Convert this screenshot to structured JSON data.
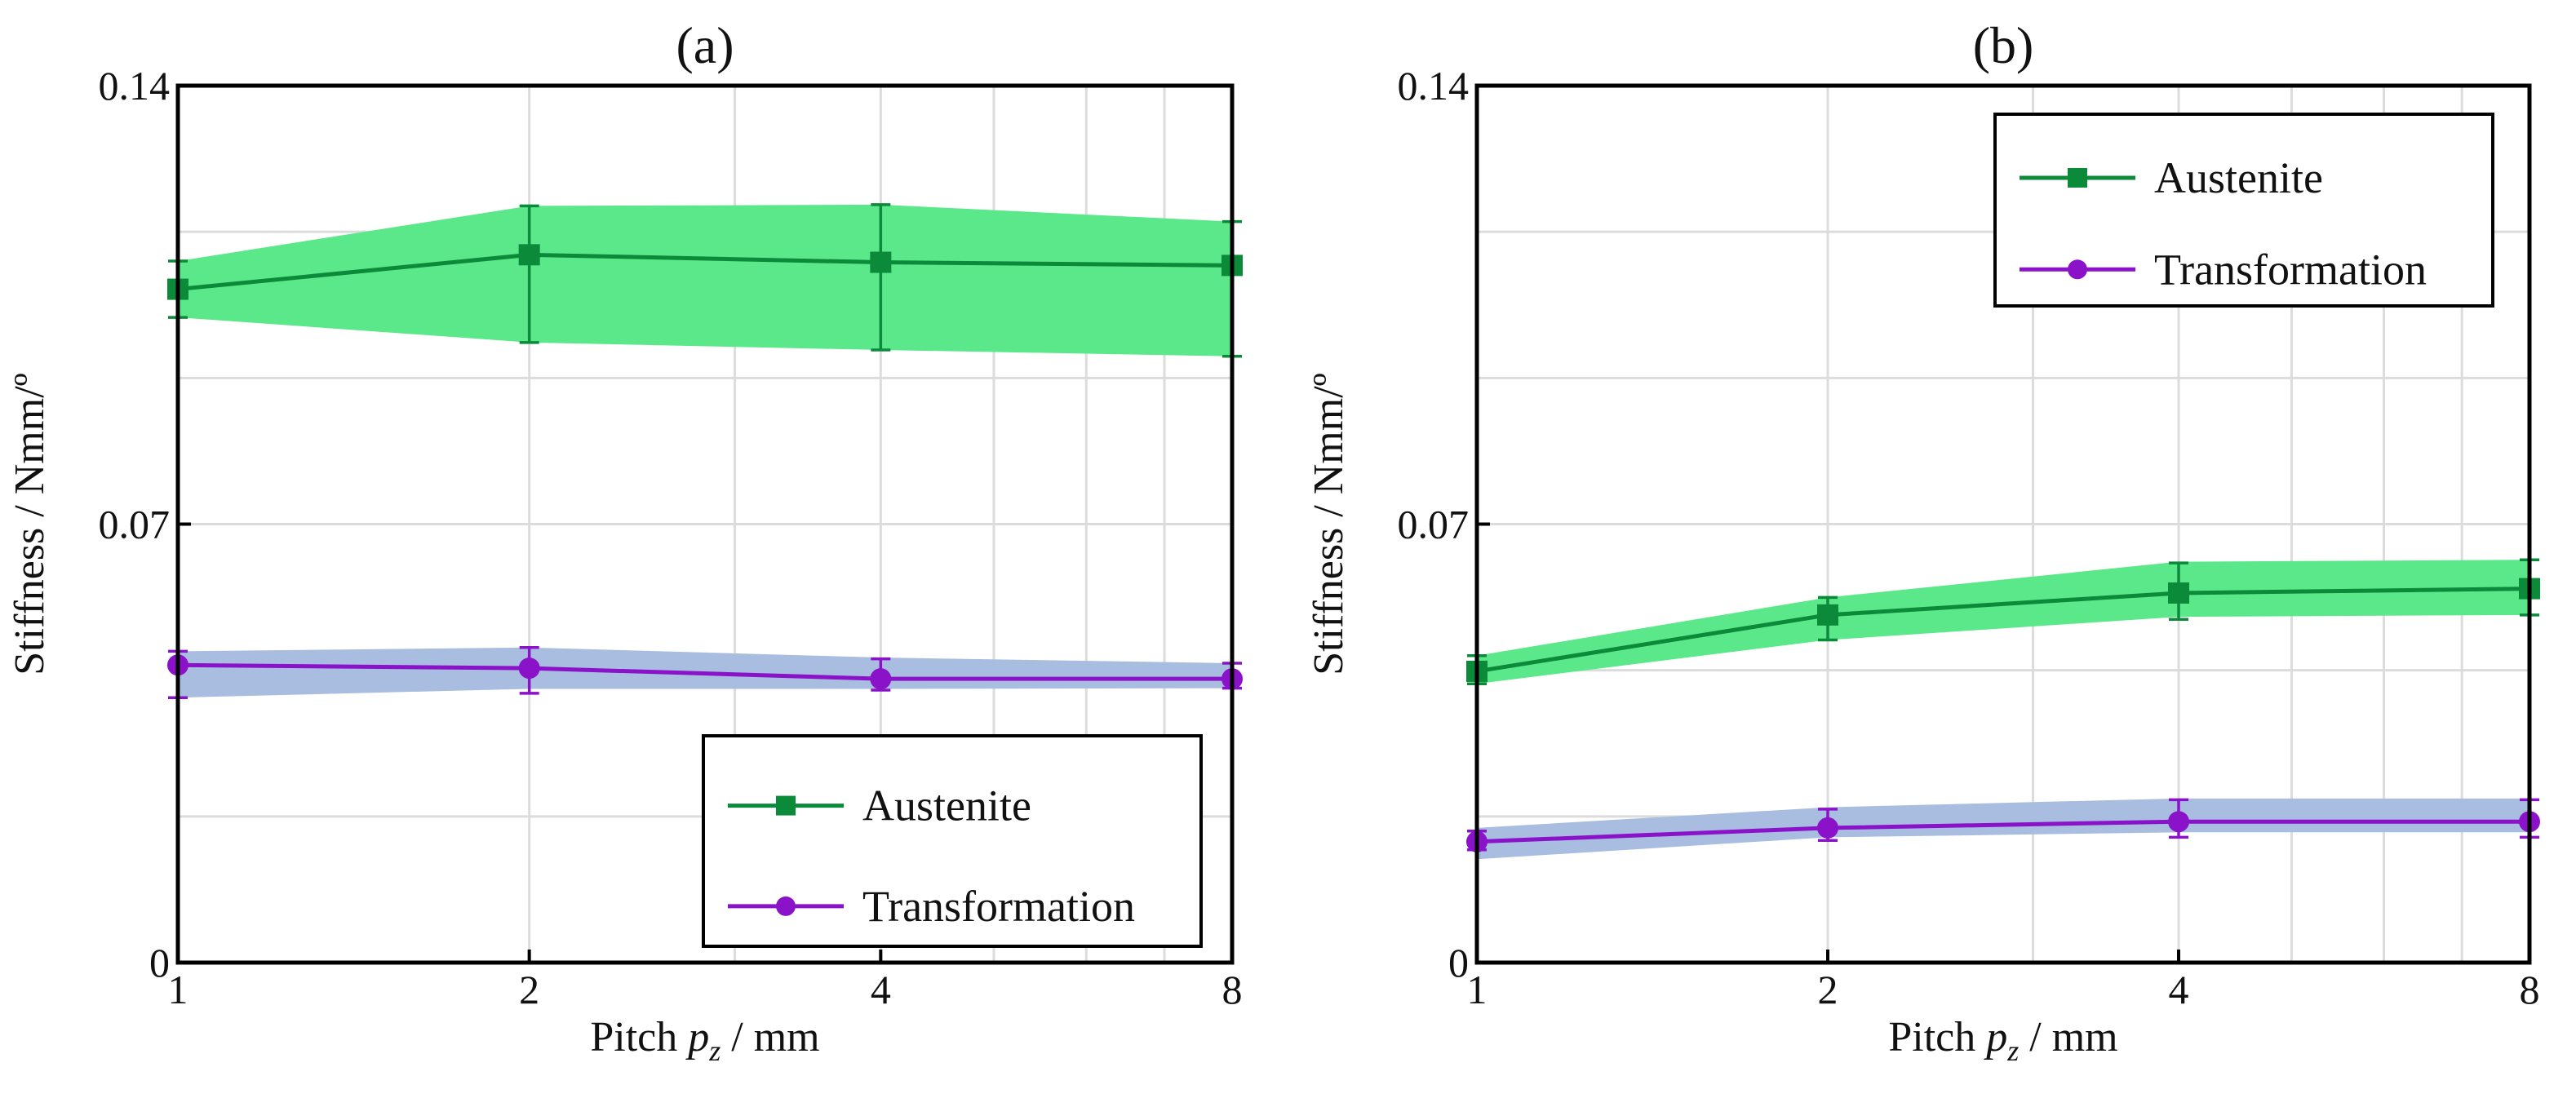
{
  "chart_data": [
    {
      "type": "line",
      "title": "(a)",
      "xlabel_parts": [
        "Pitch ",
        "p",
        "z",
        " / mm"
      ],
      "ylabel": "Stiffness / Nmm/º",
      "x_scale": "log2",
      "xlim": [
        1,
        8
      ],
      "ylim": [
        0,
        0.14
      ],
      "x_ticks": [
        1,
        2,
        4,
        8
      ],
      "x_tick_labels": [
        "1",
        "2",
        "4",
        "8"
      ],
      "y_ticks": [
        0,
        0.07,
        0.14
      ],
      "y_tick_labels": [
        "0",
        "0.07",
        "0.14"
      ],
      "grid": true,
      "legend_position": "bottom-right",
      "series": [
        {
          "name": "Austenite",
          "marker": "square",
          "color": "#0b8a3a",
          "band_color": "#5be88a",
          "x": [
            1,
            2,
            4,
            8
          ],
          "y": [
            0.1075,
            0.113,
            0.1118,
            0.1113
          ],
          "err_low": [
            0.103,
            0.099,
            0.0978,
            0.0968
          ],
          "err_high": [
            0.112,
            0.1208,
            0.121,
            0.1183
          ],
          "band_low": [
            0.103,
            0.099,
            0.0978,
            0.0968
          ],
          "band_high": [
            0.112,
            0.1208,
            0.121,
            0.1183
          ]
        },
        {
          "name": "Transformation",
          "marker": "circle",
          "color": "#8a12c9",
          "band_color": "#a9bde0",
          "x": [
            1,
            2,
            4,
            8
          ],
          "y": [
            0.0475,
            0.047,
            0.0453,
            0.0453
          ],
          "err_low": [
            0.0423,
            0.043,
            0.0435,
            0.0438
          ],
          "err_high": [
            0.0497,
            0.0503,
            0.0485,
            0.0478
          ],
          "band_low": [
            0.0423,
            0.0437,
            0.0437,
            0.0438
          ],
          "band_high": [
            0.0497,
            0.0503,
            0.0487,
            0.0478
          ]
        }
      ]
    },
    {
      "type": "line",
      "title": "(b)",
      "xlabel_parts": [
        "Pitch ",
        "p",
        "z",
        " / mm"
      ],
      "ylabel": "Stiffness / Nmm/º",
      "x_scale": "log2",
      "xlim": [
        1,
        8
      ],
      "ylim": [
        0,
        0.14
      ],
      "x_ticks": [
        1,
        2,
        4,
        8
      ],
      "x_tick_labels": [
        "1",
        "2",
        "4",
        "8"
      ],
      "y_ticks": [
        0,
        0.07,
        0.14
      ],
      "y_tick_labels": [
        "0",
        "0.07",
        "0.14"
      ],
      "grid": true,
      "legend_position": "top-right",
      "series": [
        {
          "name": "Austenite",
          "marker": "square",
          "color": "#0b8a3a",
          "band_color": "#5be88a",
          "x": [
            1,
            2,
            4,
            8
          ],
          "y": [
            0.0465,
            0.0555,
            0.059,
            0.0597
          ],
          "err_low": [
            0.0445,
            0.0515,
            0.0548,
            0.0555
          ],
          "err_high": [
            0.049,
            0.0583,
            0.0638,
            0.0643
          ],
          "band_low": [
            0.0445,
            0.0515,
            0.0552,
            0.0555
          ],
          "band_high": [
            0.049,
            0.0583,
            0.064,
            0.0643
          ]
        },
        {
          "name": "Transformation",
          "marker": "circle",
          "color": "#8a12c9",
          "band_color": "#a9bde0",
          "x": [
            1,
            2,
            4,
            8
          ],
          "y": [
            0.0193,
            0.0215,
            0.0225,
            0.0225
          ],
          "err_low": [
            0.018,
            0.0195,
            0.02,
            0.02
          ],
          "err_high": [
            0.021,
            0.0245,
            0.026,
            0.026
          ],
          "band_low": [
            0.0165,
            0.02,
            0.0208,
            0.0208
          ],
          "band_high": [
            0.0215,
            0.0248,
            0.0262,
            0.0262
          ]
        }
      ]
    }
  ]
}
